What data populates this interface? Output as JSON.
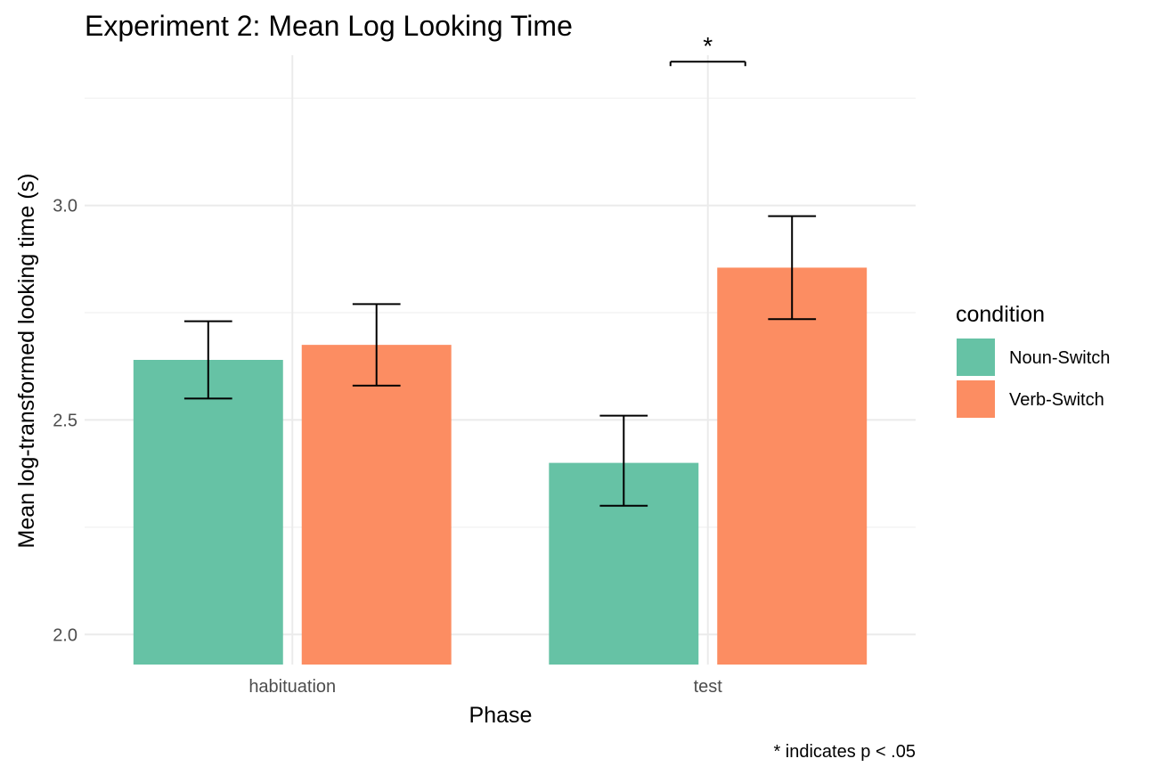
{
  "chart_data": {
    "type": "bar",
    "title": "Experiment 2: Mean Log Looking Time",
    "xlabel": "Phase",
    "ylabel": "Mean log-transformed looking time (s)",
    "categories": [
      "habituation",
      "test"
    ],
    "ylim": [
      1.93,
      3.35
    ],
    "yticks": [
      2.0,
      2.5,
      3.0
    ],
    "ytick_labels": [
      "2.0",
      "2.5",
      "3.0"
    ],
    "grid": true,
    "legend": {
      "title": "condition",
      "placement": "right"
    },
    "series": [
      {
        "name": "Noun-Switch",
        "color": "#66c2a5",
        "values": [
          2.64,
          2.4
        ],
        "error_low": [
          2.55,
          2.3
        ],
        "error_high": [
          2.73,
          2.51
        ]
      },
      {
        "name": "Verb-Switch",
        "color": "#fc8d62",
        "values": [
          2.675,
          2.855
        ],
        "error_low": [
          2.58,
          2.735
        ],
        "error_high": [
          2.77,
          2.975
        ]
      }
    ],
    "annotations": [
      {
        "text": "*",
        "category": "test",
        "y": 3.335
      }
    ],
    "caption": "* indicates p < .05"
  }
}
